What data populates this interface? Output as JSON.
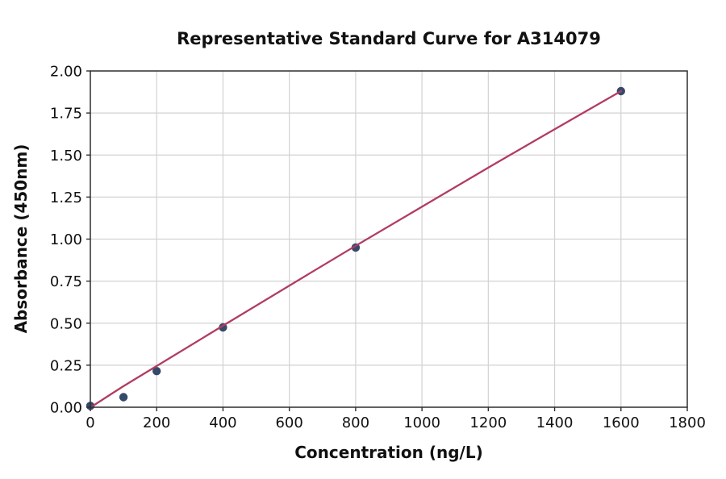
{
  "chart_data": {
    "type": "scatter",
    "title": "Representative Standard Curve for A314079",
    "xlabel": "Concentration (ng/L)",
    "ylabel": "Absorbance (450nm)",
    "xlim": [
      0,
      1800
    ],
    "ylim": [
      0,
      2.0
    ],
    "grid": true,
    "legend": null,
    "x_ticks": [
      0,
      200,
      400,
      600,
      800,
      1000,
      1200,
      1400,
      1600,
      1800
    ],
    "x_tick_labels": [
      "0",
      "200",
      "400",
      "600",
      "800",
      "1000",
      "1200",
      "1400",
      "1600",
      "1800"
    ],
    "y_ticks": [
      0,
      0.25,
      0.5,
      0.75,
      1.0,
      1.25,
      1.5,
      1.75,
      2.0
    ],
    "y_tick_labels": [
      "0.00",
      "0.25",
      "0.50",
      "0.75",
      "1.00",
      "1.25",
      "1.50",
      "1.75",
      "2.00"
    ],
    "series": [
      {
        "name": "standard-points",
        "type": "scatter",
        "color": "#35496b",
        "marker_radius": 5.2,
        "points": [
          [
            0,
            0.008
          ],
          [
            100,
            0.06
          ],
          [
            200,
            0.215
          ],
          [
            400,
            0.475
          ],
          [
            800,
            0.95
          ],
          [
            1600,
            1.88
          ]
        ]
      },
      {
        "name": "fit-curve",
        "type": "line",
        "color": "#b23c60",
        "line_width": 2.3,
        "points": [
          [
            5,
            0.005
          ],
          [
            100,
            0.125
          ],
          [
            200,
            0.245
          ],
          [
            400,
            0.485
          ],
          [
            800,
            0.96
          ],
          [
            1200,
            1.425
          ],
          [
            1600,
            1.88
          ]
        ]
      }
    ],
    "colors": {
      "grid": "#d2d2d2",
      "spine": "#2e2e2e",
      "tick": "#2e2e2e",
      "text": "#111111",
      "background": "#ffffff"
    }
  }
}
